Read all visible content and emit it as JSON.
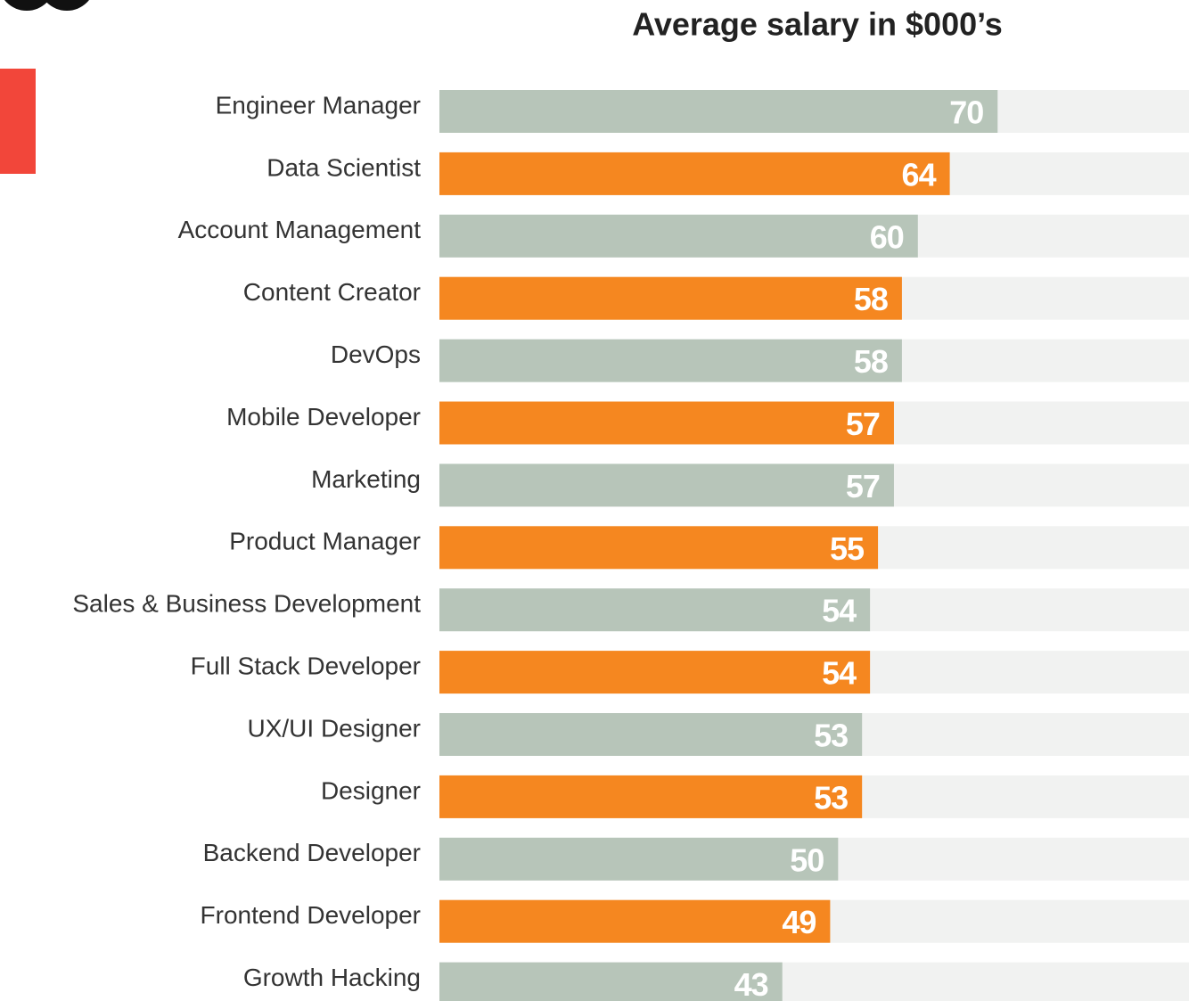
{
  "chart_data": {
    "type": "bar",
    "orientation": "horizontal",
    "title": "Average salary in $000’s",
    "categories": [
      "Engineer Manager",
      "Data Scientist",
      "Account Management",
      "Content Creator",
      "DevOps",
      "Mobile Developer",
      "Marketing",
      "Product Manager",
      "Sales & Business Development",
      "Full Stack Developer",
      "UX/UI Designer",
      "Designer",
      "Backend  Developer",
      "Frontend Developer",
      "Growth Hacking"
    ],
    "values": [
      70,
      64,
      60,
      58,
      58,
      57,
      57,
      55,
      54,
      54,
      53,
      53,
      50,
      49,
      43
    ],
    "colors": [
      "#b7c5b9",
      "#f58720",
      "#b7c5b9",
      "#f58720",
      "#b7c5b9",
      "#f58720",
      "#b7c5b9",
      "#f58720",
      "#b7c5b9",
      "#f58720",
      "#b7c5b9",
      "#f58720",
      "#b7c5b9",
      "#f58720",
      "#b7c5b9"
    ],
    "xlim": [
      0,
      94
    ]
  }
}
